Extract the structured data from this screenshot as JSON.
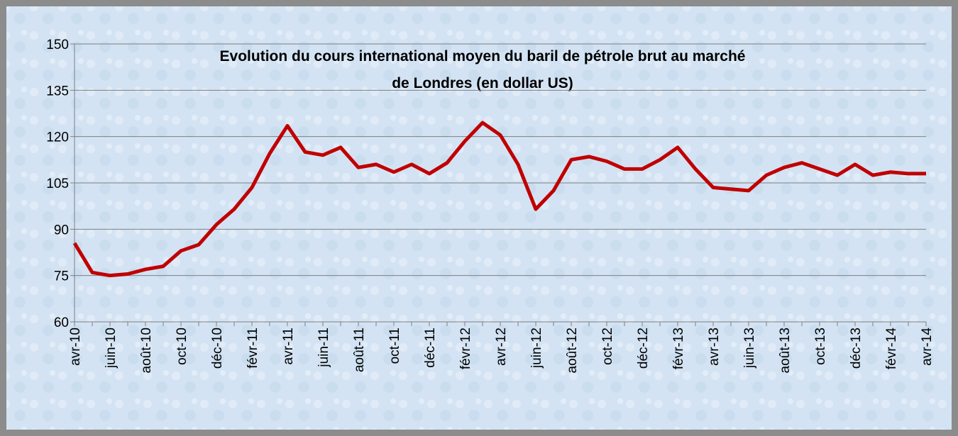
{
  "chart_data": {
    "type": "line",
    "title": [
      "Evolution du cours international moyen du baril de pétrole brut au marché",
      "de Londres (en dollar US)"
    ],
    "categories": [
      "avr-10",
      null,
      "juin-10",
      null,
      "août-10",
      null,
      "oct-10",
      null,
      "déc-10",
      null,
      "févr-11",
      null,
      "avr-11",
      null,
      "juin-11",
      null,
      "août-11",
      null,
      "oct-11",
      null,
      "déc-11",
      null,
      "févr-12",
      null,
      "avr-12",
      null,
      "juin-12",
      null,
      "août-12",
      null,
      "oct-12",
      null,
      "déc-12",
      null,
      "févr-13",
      null,
      "avr-13",
      null,
      "juin-13",
      null,
      "août-13",
      null,
      "oct-13",
      null,
      "déc-13",
      null,
      "févr-14",
      null,
      "avr-14"
    ],
    "series": [
      {
        "color": "#c00000",
        "values": [
          85.5,
          76,
          75,
          75.5,
          77,
          78,
          83,
          85,
          91.5,
          96.5,
          103.5,
          114.5,
          123.5,
          115,
          114,
          116.5,
          110,
          111,
          108.5,
          111,
          108,
          111.5,
          118.5,
          124.5,
          120.5,
          111,
          96.5,
          102.5,
          112.5,
          113.5,
          112,
          109.5,
          109.5,
          112.5,
          116.5,
          109.5,
          103.5,
          103,
          102.5,
          107.5,
          110,
          111.5,
          109.5,
          107.5,
          111,
          107.5,
          108.5,
          108,
          108
        ]
      }
    ],
    "ylim": [
      60,
      150
    ],
    "yticks": [
      60,
      75,
      90,
      105,
      120,
      135,
      150
    ],
    "grid": true
  }
}
